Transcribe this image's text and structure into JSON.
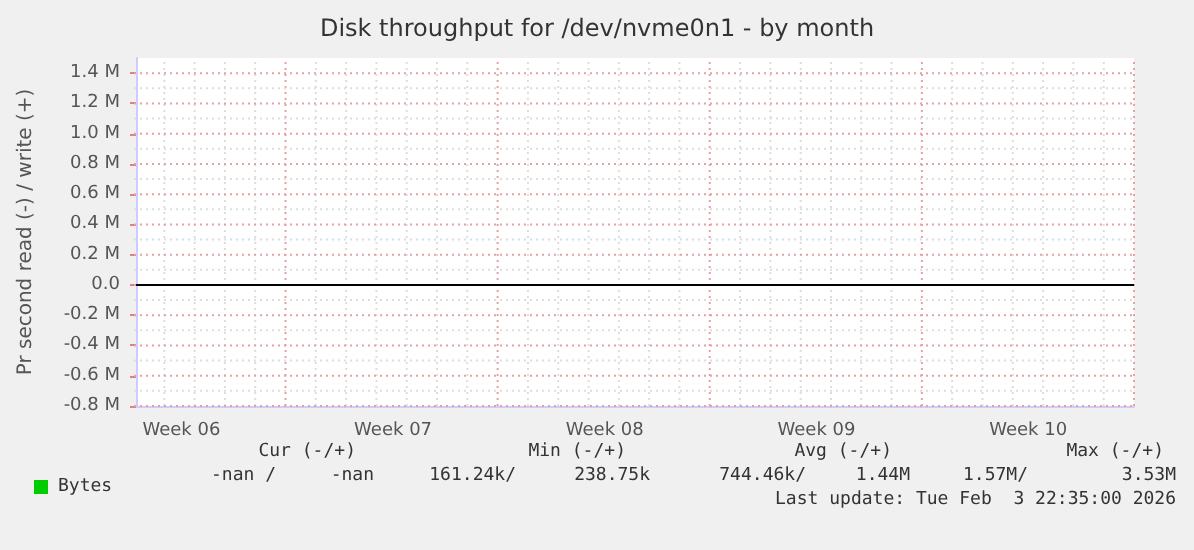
{
  "chart_data": {
    "type": "line",
    "title": "Disk throughput for /dev/nvme0n1 - by month",
    "ylabel": "Pr second read (-) / write (+)",
    "categories": [
      null,
      "Week 06",
      null,
      null,
      null,
      null,
      null,
      null,
      "Week 07",
      null,
      null,
      null,
      null,
      null,
      null,
      "Week 08",
      null,
      null,
      null,
      null,
      null,
      null,
      "Week 09",
      null,
      null,
      null,
      null,
      null,
      null,
      "Week 10",
      null,
      null,
      null
    ],
    "series": [
      {
        "name": "Bytes",
        "color": "#00cc00",
        "values": [
          null,
          null,
          null,
          null,
          null,
          null,
          null,
          null,
          null,
          null,
          null,
          null,
          null,
          null,
          null,
          null,
          null,
          null,
          null,
          null,
          null,
          null,
          null,
          null,
          null,
          null,
          null,
          null,
          null,
          null,
          null,
          null,
          null
        ]
      }
    ],
    "ylim": [
      -800000,
      1500000
    ],
    "yticks": [
      {
        "value": -800000,
        "label": "-0.8 M"
      },
      {
        "value": -600000,
        "label": "-0.6 M"
      },
      {
        "value": -400000,
        "label": "-0.4 M"
      },
      {
        "value": -200000,
        "label": "-0.2 M"
      },
      {
        "value": 0,
        "label": "0.0"
      },
      {
        "value": 200000,
        "label": "0.2 M"
      },
      {
        "value": 400000,
        "label": "0.4 M"
      },
      {
        "value": 600000,
        "label": "0.6 M"
      },
      {
        "value": 800000,
        "label": "0.8 M"
      },
      {
        "value": 1000000,
        "label": "1.0 M"
      },
      {
        "value": 1200000,
        "label": "1.2 M"
      },
      {
        "value": 1400000,
        "label": "1.4 M"
      }
    ],
    "ref_lines": [
      {
        "axis": "y",
        "value": 0,
        "label": null,
        "color": "#000000"
      }
    ],
    "grid": true,
    "legend": "bottom left",
    "annotations": [
      "Cur (-/+)",
      "Min (-/+)",
      "Avg (-/+)",
      "Max (-/+)",
      "-nan /",
      "-nan",
      "161.24k/",
      "238.75k",
      "744.46k/",
      "1.44M",
      "1.57M/",
      "3.53M",
      "Last update: Tue Feb  3 22:35:00 2026"
    ]
  }
}
